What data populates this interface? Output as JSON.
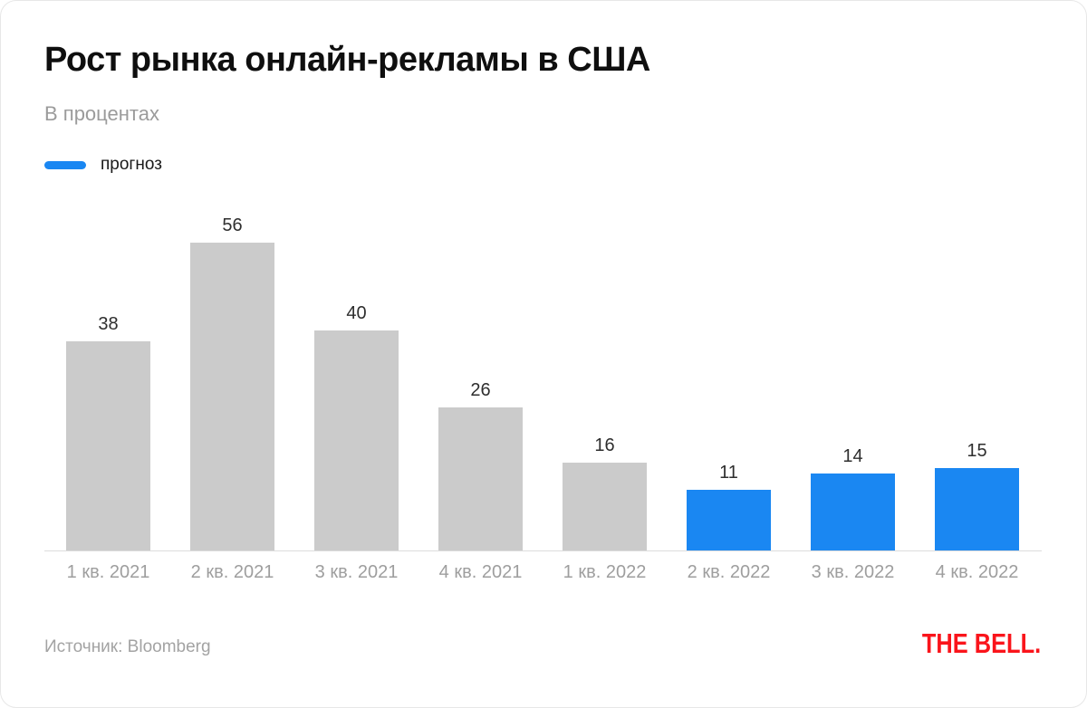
{
  "header": {
    "title": "Рост рынка онлайн-рекламы в США",
    "subtitle": "В процентах"
  },
  "legend": {
    "label": "прогноз",
    "color": "#1a87f2"
  },
  "footer": {
    "source": "Источник: Bloomberg",
    "logo": "THE BELL."
  },
  "colors": {
    "bar": "#cbcbcb",
    "forecast": "#1a87f2",
    "axis_line": "#dcdcdc",
    "value_label": "#2e2e2e",
    "x_label": "#9e9e9e",
    "logo_red": "#fa141b"
  },
  "chart_data": {
    "type": "bar",
    "title": "Рост рынка онлайн-рекламы в США",
    "subtitle": "В процентах",
    "categories": [
      "1 кв. 2021",
      "2 кв. 2021",
      "3 кв. 2021",
      "4 кв. 2021",
      "1 кв. 2022",
      "2 кв. 2022",
      "3 кв. 2022",
      "4 кв. 2022"
    ],
    "values": [
      38,
      56,
      40,
      26,
      16,
      11,
      14,
      15
    ],
    "forecast_flags": [
      false,
      false,
      false,
      false,
      false,
      true,
      true,
      true
    ],
    "value_labels": [
      "38",
      "56",
      "40",
      "26",
      "16",
      "11",
      "14",
      "15"
    ],
    "legend": [
      {
        "label": "прогноз",
        "color": "#1a87f2"
      }
    ],
    "bar_color": "#cbcbcb",
    "forecast_color": "#1a87f2",
    "xlabel": "",
    "ylabel": "проценты",
    "ylim": [
      0,
      60
    ],
    "grid": false,
    "legend_position": "top-left"
  }
}
